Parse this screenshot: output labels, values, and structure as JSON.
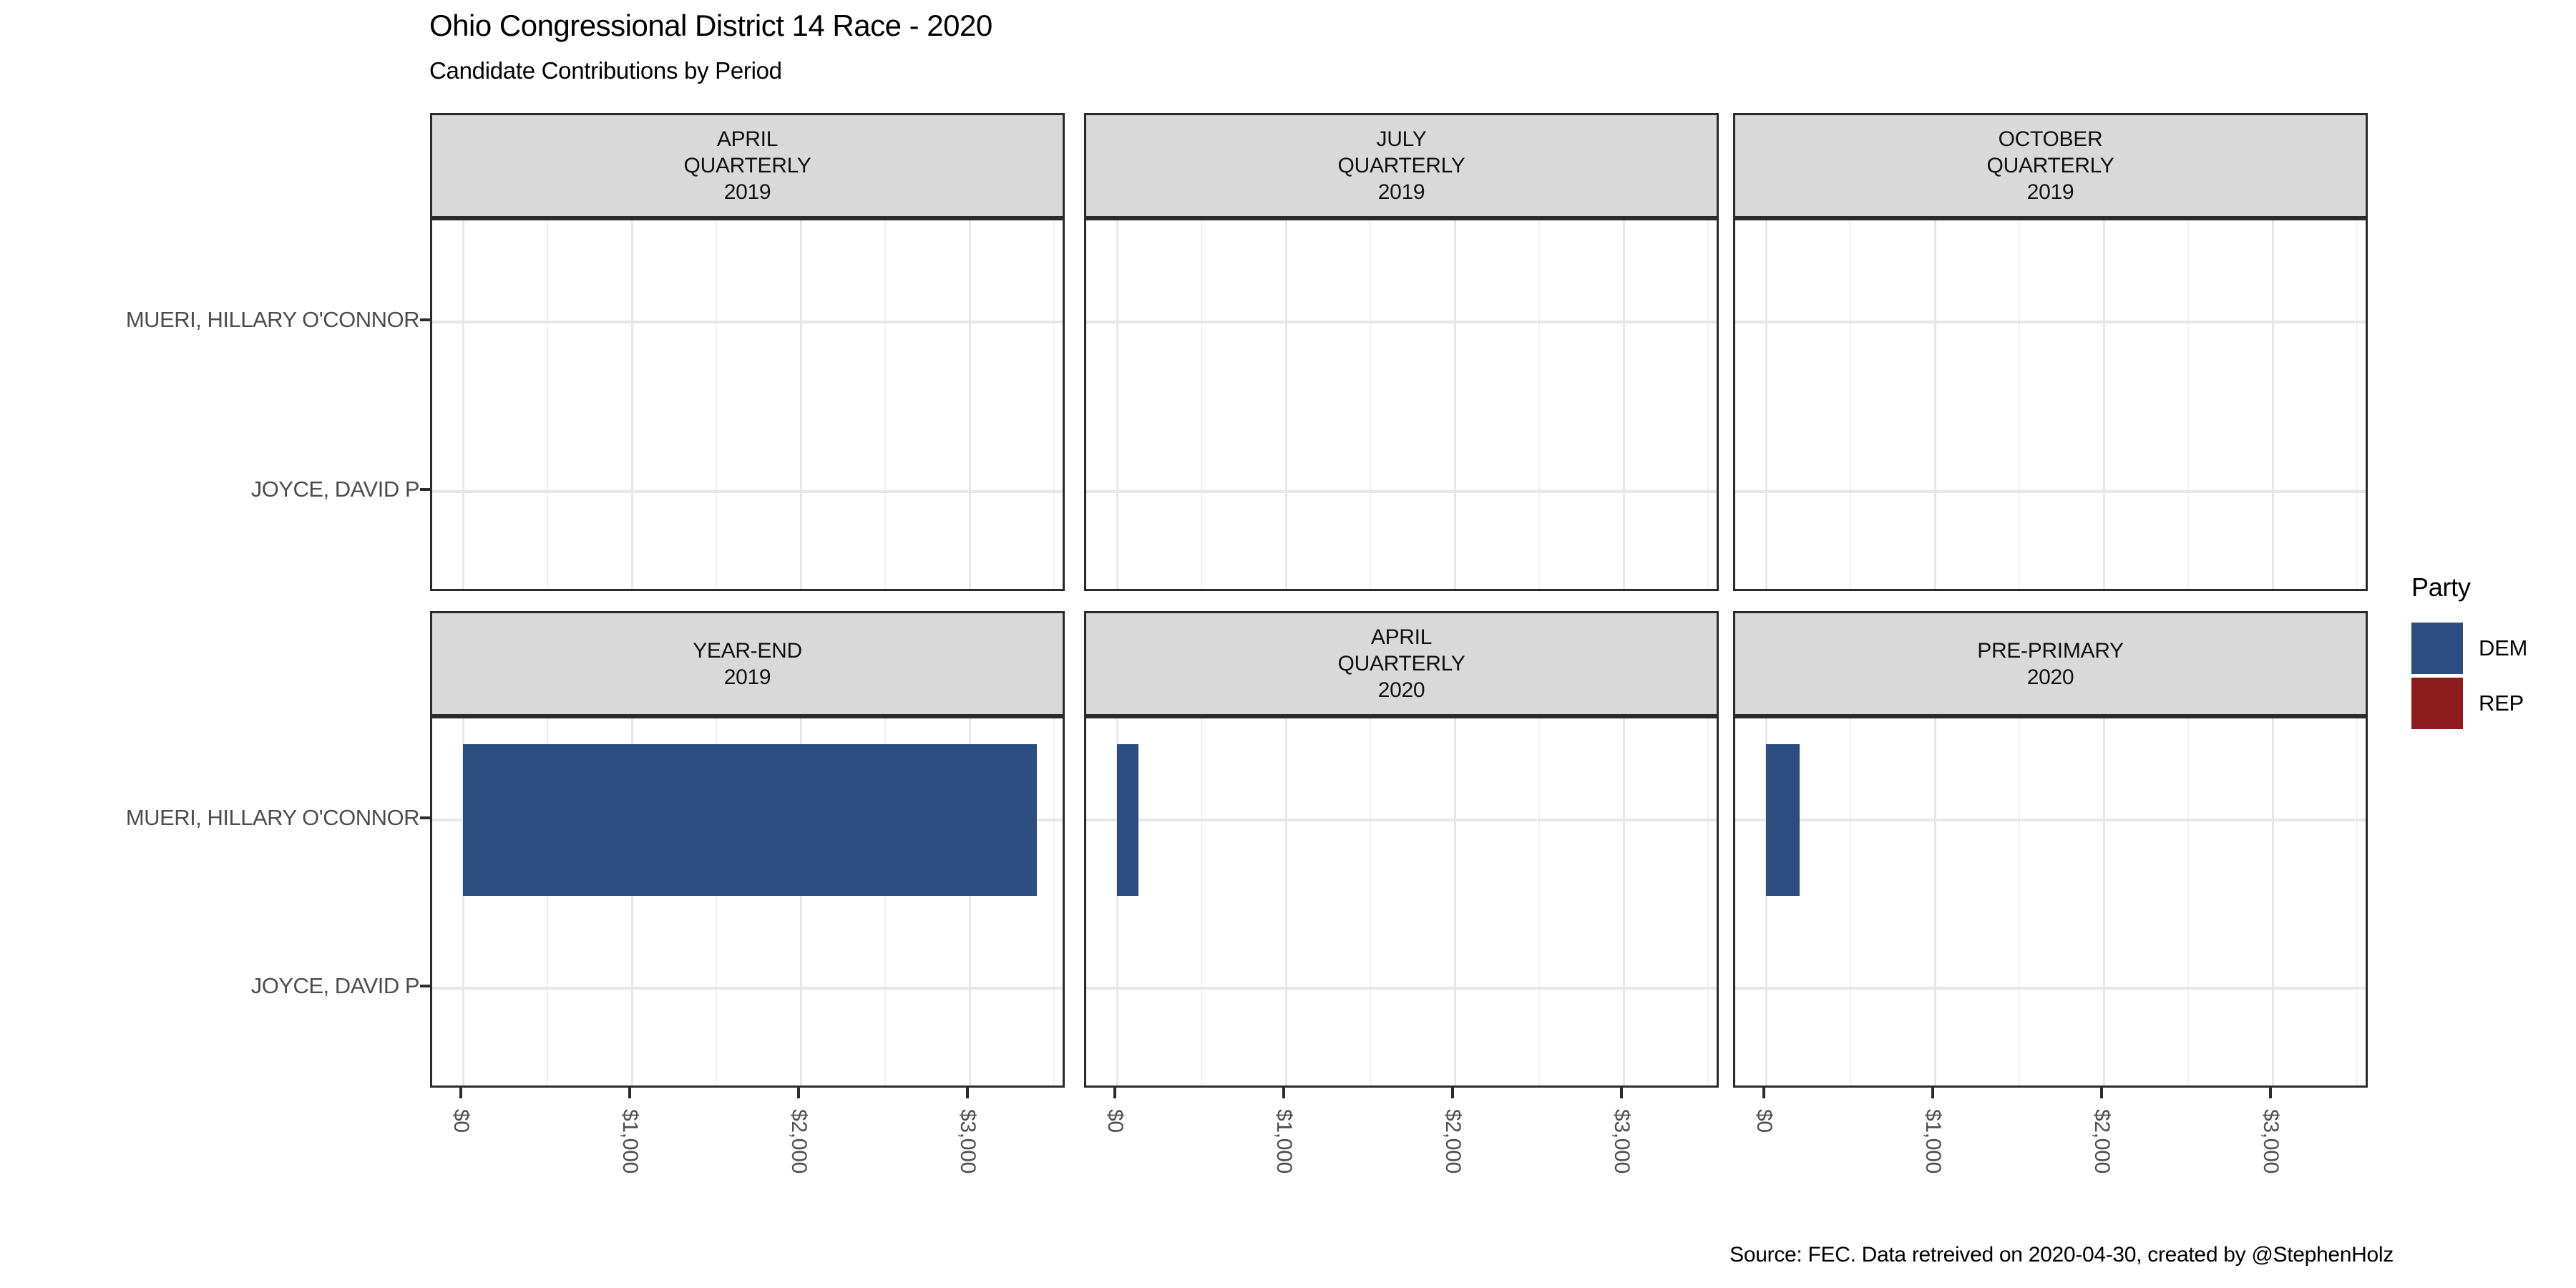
{
  "header": {
    "title": "Ohio Congressional District 14 Race - 2020",
    "subtitle": "Candidate Contributions by Period"
  },
  "caption": "Source: FEC. Data retreived on 2020-04-30, created by @StephenHolz",
  "legend": {
    "title": "Party",
    "items": [
      {
        "label": "DEM",
        "color": "#2B4D80"
      },
      {
        "label": "REP",
        "color": "#8E1B1B"
      }
    ]
  },
  "colors": {
    "dem": "#2B4D80",
    "rep": "#8E1B1B",
    "strip_bg": "#D9D9D9",
    "panel_border": "#2B2B2B",
    "grid_major": "#E7E7E7",
    "grid_minor": "#F2F2F2",
    "axis_text": "#4D4D4D"
  },
  "chart_data": {
    "type": "bar",
    "orientation": "horizontal",
    "title": "Ohio Congressional District 14 Race - 2020",
    "subtitle": "Candidate Contributions by Period",
    "caption": "Source: FEC. Data retreived on 2020-04-30, created by @StephenHolz",
    "categories": [
      "MUERI, HILLARY O'CONNOR",
      "JOYCE, DAVID P"
    ],
    "x_tick_labels": [
      "$0",
      "$1,000",
      "$2,000",
      "$3,000"
    ],
    "x_tick_values": [
      0,
      1000,
      2000,
      3000
    ],
    "x_minor_values": [
      500,
      1500,
      2500,
      3500
    ],
    "xlim": [
      0,
      3576
    ],
    "grid": true,
    "legend_position": "right",
    "legend_title": "Party",
    "series_legend": [
      {
        "name": "DEM",
        "color": "#2B4D80"
      },
      {
        "name": "REP",
        "color": "#8E1B1B"
      }
    ],
    "facets": [
      {
        "row": 0,
        "col": 0,
        "lines": [
          "APRIL",
          "QUARTERLY",
          "2019"
        ],
        "bars": []
      },
      {
        "row": 0,
        "col": 1,
        "lines": [
          "JULY",
          "QUARTERLY",
          "2019"
        ],
        "bars": []
      },
      {
        "row": 0,
        "col": 2,
        "lines": [
          "OCTOBER",
          "QUARTERLY",
          "2019"
        ],
        "bars": []
      },
      {
        "row": 1,
        "col": 0,
        "lines": [
          "YEAR-END",
          "2019"
        ],
        "bars": [
          {
            "category": "MUERI, HILLARY O'CONNOR",
            "party": "DEM",
            "value": 3400
          }
        ]
      },
      {
        "row": 1,
        "col": 1,
        "lines": [
          "APRIL",
          "QUARTERLY",
          "2020"
        ],
        "bars": [
          {
            "category": "MUERI, HILLARY O'CONNOR",
            "party": "DEM",
            "value": 125
          }
        ]
      },
      {
        "row": 1,
        "col": 2,
        "lines": [
          "PRE-PRIMARY",
          "2020"
        ],
        "bars": [
          {
            "category": "MUERI, HILLARY O'CONNOR",
            "party": "DEM",
            "value": 200
          }
        ]
      }
    ]
  }
}
